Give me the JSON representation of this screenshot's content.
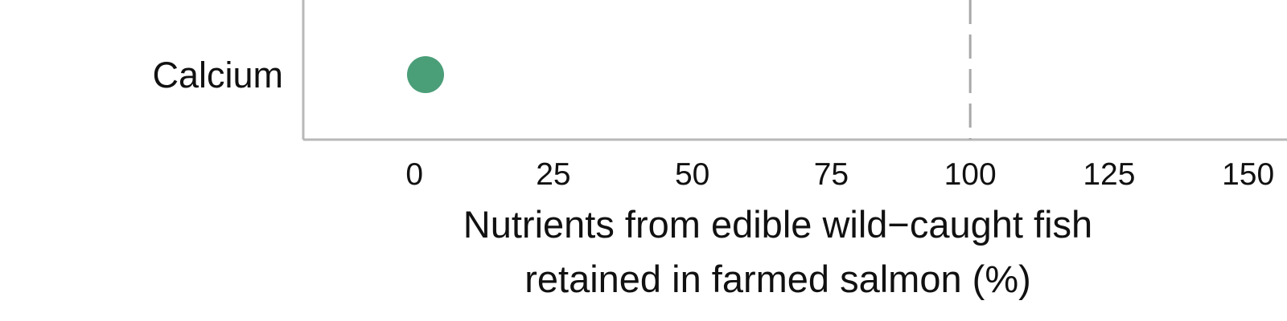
{
  "chart_data": {
    "type": "scatter",
    "categories": [
      "Calcium"
    ],
    "series": [
      {
        "values": [
          2
        ],
        "color": "#4a9e78"
      }
    ],
    "xlabel": [
      "Nutrients from edible wild−caught fish",
      "retained in farmed salmon (%)"
    ],
    "xticks": [
      "0",
      "25",
      "50",
      "75",
      "100",
      "125",
      "150"
    ],
    "xlim": [
      -20,
      157
    ],
    "reference_line": {
      "x": 100,
      "style": "dashed",
      "color": "#a8a8a8"
    },
    "grid": false,
    "legend": "none"
  }
}
